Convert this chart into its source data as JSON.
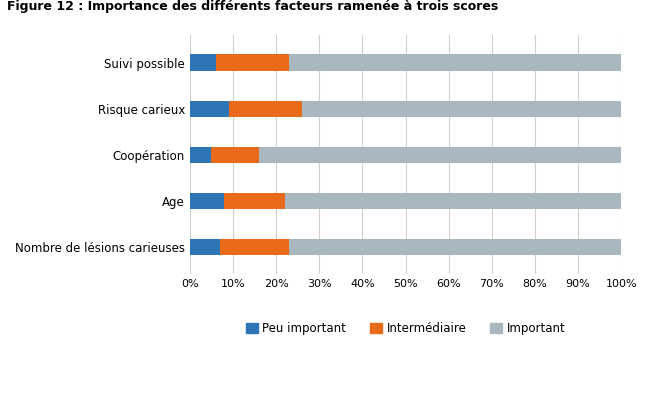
{
  "categories": [
    "Nombre de lésions carieuses",
    "Age",
    "Coopération",
    "Risque carieux",
    "Suivi possible"
  ],
  "peu_important": [
    7,
    8,
    5,
    9,
    6
  ],
  "intermediaire": [
    16,
    14,
    11,
    17,
    17
  ],
  "important": [
    77,
    78,
    84,
    74,
    77
  ],
  "colors": {
    "peu_important": "#2E75B6",
    "intermediaire": "#E96A1A",
    "important": "#A9B8BF"
  },
  "legend_labels": [
    "Peu important",
    "Intermédiaire",
    "Important"
  ],
  "title": "Figure 12 : Importance des différents facteurs ramenée à trois scores",
  "xlabel_ticks": [
    "0%",
    "10%",
    "20%",
    "30%",
    "40%",
    "50%",
    "60%",
    "70%",
    "80%",
    "90%",
    "100%"
  ],
  "bar_height": 0.35,
  "background_color": "#ffffff",
  "grid_color": "#d0d0d0"
}
